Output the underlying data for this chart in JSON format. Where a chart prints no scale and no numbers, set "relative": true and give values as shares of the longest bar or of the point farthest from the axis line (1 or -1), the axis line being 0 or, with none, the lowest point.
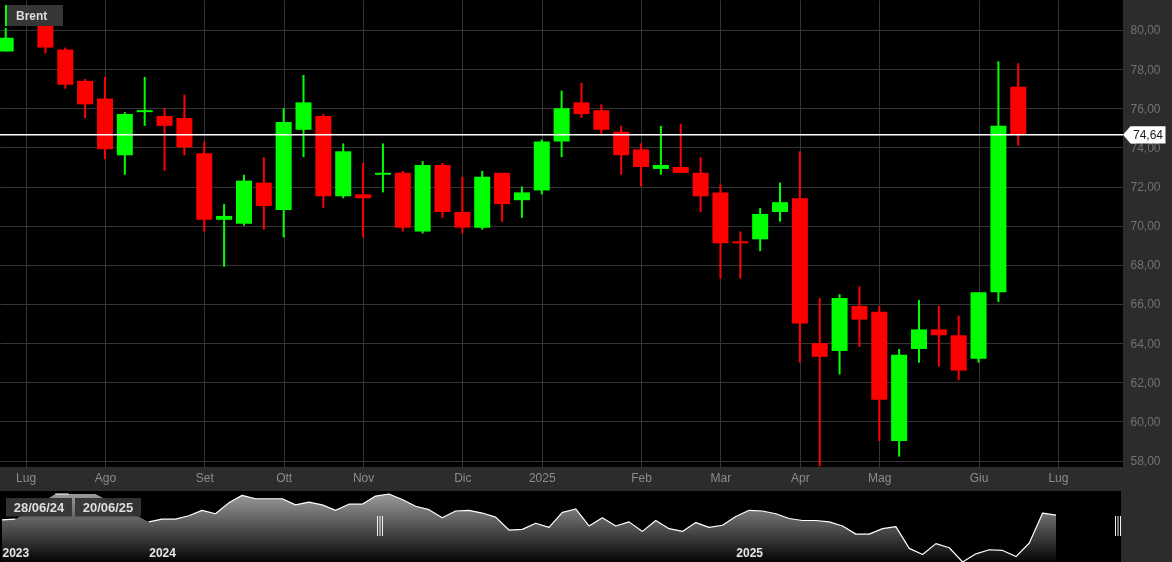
{
  "chart_data": [
    {
      "type": "candlestick",
      "x": [
        "2024-06-28",
        "2024-07-12",
        "2024-07-19",
        "2024-07-26",
        "2024-08-02",
        "2024-08-09",
        "2024-08-16",
        "2024-08-23",
        "2024-08-30",
        "2024-09-06",
        "2024-09-13",
        "2024-09-20",
        "2024-09-27",
        "2024-10-04",
        "2024-10-11",
        "2024-10-18",
        "2024-10-25",
        "2024-11-01",
        "2024-11-08",
        "2024-11-15",
        "2024-11-22",
        "2024-11-29",
        "2024-12-06",
        "2024-12-13",
        "2024-12-20",
        "2024-12-27",
        "2025-01-03",
        "2025-01-10",
        "2025-01-17",
        "2025-01-24",
        "2025-01-31",
        "2025-02-07",
        "2025-02-14",
        "2025-02-21",
        "2025-02-28",
        "2025-03-07",
        "2025-03-14",
        "2025-03-21",
        "2025-03-28",
        "2025-04-04",
        "2025-04-11",
        "2025-04-18",
        "2025-04-25",
        "2025-05-02",
        "2025-05-09",
        "2025-05-16",
        "2025-05-23",
        "2025-05-30",
        "2025-06-06",
        "2025-06-13",
        "2025-06-20"
      ],
      "series": [
        {
          "name": "Brent",
          "color": "#00ff00",
          "ohlc": [
            [
              78.9,
              80.1,
              78.9,
              79.6
            ],
            [
              80.3,
              80.3,
              78.8,
              79.1
            ],
            [
              79.0,
              79.1,
              77.0,
              77.2
            ],
            [
              77.4,
              77.5,
              75.5,
              76.2
            ],
            [
              76.5,
              77.6,
              73.4,
              73.9
            ],
            [
              73.6,
              75.8,
              72.6,
              75.7
            ],
            [
              75.8,
              77.6,
              75.1,
              75.9
            ],
            [
              75.6,
              76.0,
              72.8,
              75.1
            ],
            [
              75.5,
              76.7,
              73.6,
              74.0
            ],
            [
              73.7,
              74.3,
              69.7,
              70.3
            ],
            [
              70.3,
              71.1,
              67.9,
              70.5
            ],
            [
              70.1,
              72.6,
              70.0,
              72.3
            ],
            [
              72.2,
              73.5,
              69.8,
              71.0
            ],
            [
              70.8,
              76.0,
              69.4,
              75.3
            ],
            [
              74.9,
              77.7,
              73.5,
              76.3
            ],
            [
              75.6,
              75.7,
              70.9,
              71.5
            ],
            [
              71.5,
              74.2,
              71.4,
              73.8
            ],
            [
              71.6,
              73.2,
              69.4,
              71.4
            ],
            [
              72.6,
              74.2,
              71.7,
              72.7
            ],
            [
              72.7,
              72.8,
              69.7,
              69.9
            ],
            [
              69.7,
              73.3,
              69.6,
              73.1
            ],
            [
              73.1,
              73.2,
              70.4,
              70.7
            ],
            [
              70.7,
              72.5,
              69.6,
              69.9
            ],
            [
              69.9,
              72.8,
              69.8,
              72.5
            ],
            [
              72.7,
              72.7,
              70.2,
              71.1
            ],
            [
              71.3,
              72.0,
              70.4,
              71.7
            ],
            [
              71.8,
              74.4,
              71.6,
              74.3
            ],
            [
              74.3,
              76.9,
              73.5,
              76.0
            ],
            [
              76.3,
              77.3,
              75.5,
              75.7
            ],
            [
              75.9,
              76.2,
              74.6,
              74.9
            ],
            [
              74.8,
              75.1,
              72.6,
              73.6
            ],
            [
              73.9,
              74.2,
              72.0,
              73.0
            ],
            [
              72.9,
              75.1,
              72.6,
              73.1
            ],
            [
              73.0,
              75.2,
              72.7,
              72.7
            ],
            [
              72.7,
              73.5,
              70.7,
              71.5
            ],
            [
              71.7,
              72.1,
              67.3,
              69.1
            ],
            [
              69.2,
              69.7,
              67.3,
              69.1
            ],
            [
              69.3,
              70.9,
              68.7,
              70.6
            ],
            [
              70.7,
              72.2,
              70.2,
              71.2
            ],
            [
              71.4,
              73.8,
              63.0,
              65.0
            ],
            [
              64.0,
              66.3,
              57.7,
              63.3
            ],
            [
              63.6,
              66.5,
              62.4,
              66.3
            ],
            [
              65.9,
              66.9,
              63.8,
              65.2
            ],
            [
              65.6,
              65.9,
              59.0,
              61.1
            ],
            [
              59.0,
              63.7,
              58.2,
              63.4
            ],
            [
              63.7,
              66.2,
              63.0,
              64.7
            ],
            [
              64.7,
              65.9,
              62.8,
              64.4
            ],
            [
              64.4,
              65.4,
              62.1,
              62.6
            ],
            [
              63.2,
              66.6,
              63.0,
              66.6
            ],
            [
              66.6,
              78.4,
              66.1,
              75.1
            ],
            [
              77.1,
              78.3,
              74.1,
              74.64
            ]
          ],
          "colors": [
            "#00ff00",
            "#ff0000",
            "#ff0000",
            "#ff0000",
            "#ff0000",
            "#00ff00",
            "#00ff00",
            "#ff0000",
            "#ff0000",
            "#ff0000",
            "#00ff00",
            "#00ff00",
            "#ff0000",
            "#00ff00",
            "#00ff00",
            "#ff0000",
            "#00ff00",
            "#ff0000",
            "#00ff00",
            "#ff0000",
            "#00ff00",
            "#ff0000",
            "#ff0000",
            "#00ff00",
            "#ff0000",
            "#00ff00",
            "#00ff00",
            "#00ff00",
            "#ff0000",
            "#ff0000",
            "#ff0000",
            "#ff0000",
            "#00ff00",
            "#ff0000",
            "#ff0000",
            "#ff0000",
            "#ff0000",
            "#00ff00",
            "#00ff00",
            "#ff0000",
            "#ff0000",
            "#00ff00",
            "#ff0000",
            "#ff0000",
            "#00ff00",
            "#00ff00",
            "#ff0000",
            "#ff0000",
            "#00ff00",
            "#00ff00",
            "#ff0000"
          ]
        }
      ],
      "xlim": [
        "2024-06-27T18:00",
        "2025-07-25T04:00"
      ],
      "xticks": [
        {
          "value": "2024-07-05",
          "label": "Lug"
        },
        {
          "value": "2024-08-02",
          "label": "Ago"
        },
        {
          "value": "2024-09-06",
          "label": "Set"
        },
        {
          "value": "2024-10-04",
          "label": "Ott"
        },
        {
          "value": "2024-11-01",
          "label": "Nov"
        },
        {
          "value": "2024-12-06",
          "label": "Dic"
        },
        {
          "value": "2025-01-03",
          "label": "2025"
        },
        {
          "value": "2025-02-07",
          "label": "Feb"
        },
        {
          "value": "2025-03-07",
          "label": "Mar"
        },
        {
          "value": "2025-04-04",
          "label": "Apr"
        },
        {
          "value": "2025-05-02",
          "label": "Mag"
        },
        {
          "value": "2025-06-06",
          "label": "Giu"
        },
        {
          "value": "2025-07-04",
          "label": "Lug"
        }
      ],
      "ylim": [
        57.67,
        81.53
      ],
      "yticks": [
        {
          "value": 58,
          "label": "58,00"
        },
        {
          "value": 60,
          "label": "60,00"
        },
        {
          "value": 62,
          "label": "62,00"
        },
        {
          "value": 64,
          "label": "64,00"
        },
        {
          "value": 66,
          "label": "66,00"
        },
        {
          "value": 68,
          "label": "68,00"
        },
        {
          "value": 70,
          "label": "70,00"
        },
        {
          "value": 72,
          "label": "72,00"
        },
        {
          "value": 74,
          "label": "74,00"
        },
        {
          "value": 76,
          "label": "76,00"
        },
        {
          "value": 78,
          "label": "78,00"
        },
        {
          "value": 80,
          "label": "80,00"
        }
      ],
      "ref_lines": [
        {
          "axis": "y",
          "value": 74.64,
          "label": "74,64",
          "color": "#ffffff"
        }
      ],
      "grid": true,
      "legend": "top left"
    },
    {
      "type": "area",
      "relative": true,
      "color": "#9a9a9a",
      "categories": [
        null,
        "2023",
        null,
        null,
        null,
        null,
        null,
        null,
        null,
        null,
        null,
        null,
        "2024",
        null,
        null,
        null,
        null,
        null,
        null,
        null,
        null,
        null,
        null,
        null,
        null,
        null,
        null,
        null,
        null,
        null,
        null,
        null,
        null,
        null,
        null,
        null,
        null,
        null,
        null,
        null,
        null,
        null,
        null,
        null,
        null,
        null,
        null,
        null,
        null,
        null,
        null,
        null,
        null,
        null,
        null,
        null,
        "2025",
        null,
        null,
        null,
        null,
        null,
        null,
        null,
        null,
        null,
        null,
        null,
        null,
        null,
        null,
        null,
        null,
        null,
        null,
        null,
        null,
        null,
        null,
        null
      ],
      "values": [
        0.62,
        0.63,
        null,
        null,
        1.0,
        1.0,
        null,
        1.0,
        null,
        null,
        null,
        0.59,
        0.63,
        0.63,
        0.68,
        0.76,
        0.71,
        0.87,
        0.98,
        0.93,
        0.93,
        0.93,
        0.84,
        0.88,
        0.84,
        0.76,
        0.85,
        0.85,
        0.97,
        1.0,
        0.92,
        0.82,
        0.77,
        0.65,
        0.75,
        0.76,
        0.72,
        0.66,
        0.47,
        0.48,
        0.57,
        0.51,
        0.73,
        0.78,
        0.53,
        0.65,
        0.53,
        0.59,
        0.45,
        0.61,
        0.49,
        0.45,
        0.58,
        0.51,
        0.54,
        0.67,
        0.76,
        0.75,
        0.71,
        0.64,
        0.61,
        0.61,
        0.59,
        0.53,
        0.41,
        0.41,
        0.49,
        0.52,
        0.2,
        0.11,
        0.27,
        0.21,
        0.0,
        0.12,
        0.18,
        0.17,
        0.08,
        0.28,
        0.72,
        0.69
      ],
      "annotations": [
        "28/06/24",
        "20/06/25"
      ]
    }
  ]
}
